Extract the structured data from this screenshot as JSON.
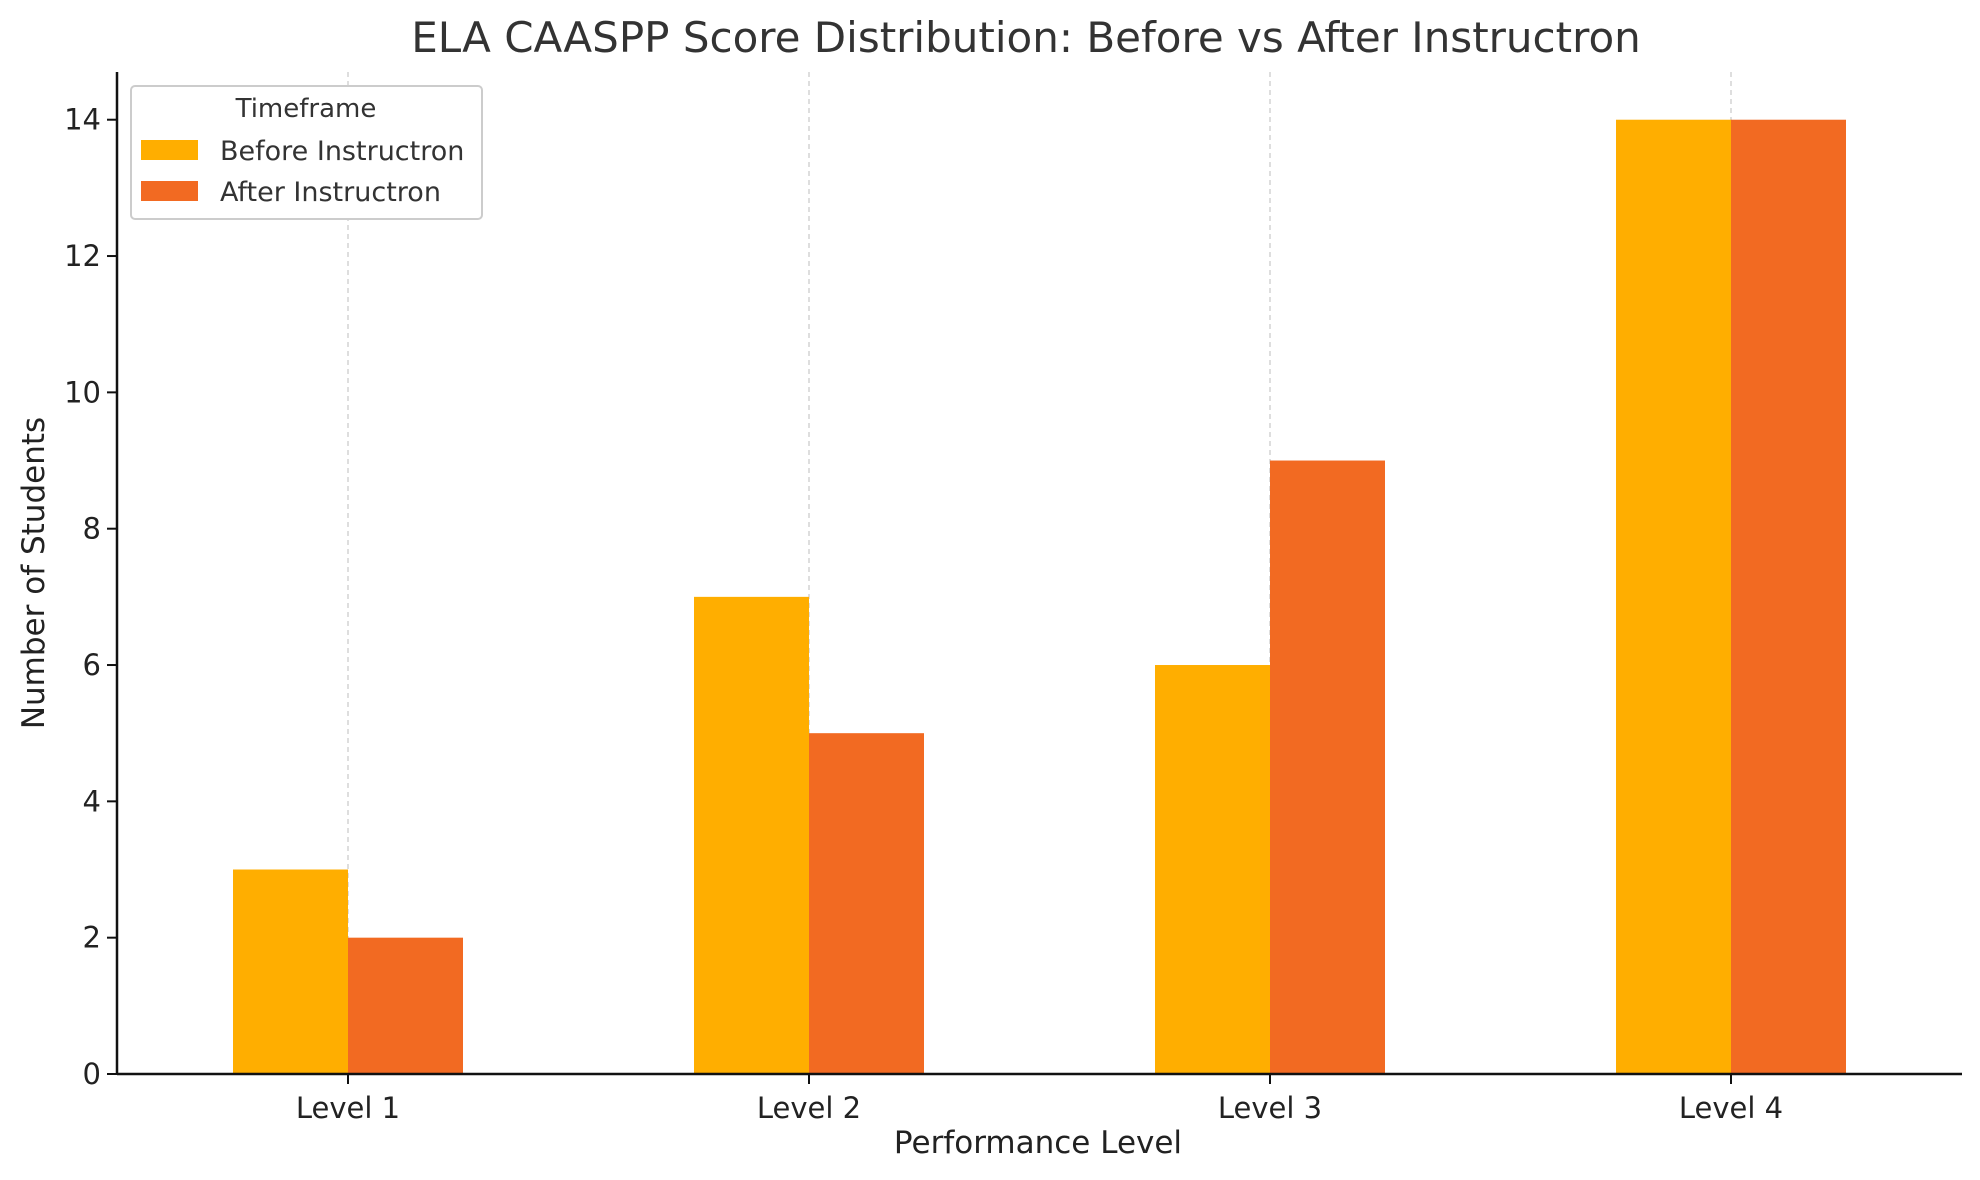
{
  "chart_data": {
    "type": "bar",
    "title": "ELA CAASPP Score Distribution: Before vs After Instructron",
    "xlabel": "Performance Level",
    "ylabel": "Number of Students",
    "categories": [
      "Level 1",
      "Level 2",
      "Level 3",
      "Level 4"
    ],
    "series": [
      {
        "name": "Before Instructron",
        "values": [
          3,
          7,
          6,
          14
        ],
        "color": "#FFAE00"
      },
      {
        "name": "After Instructron",
        "values": [
          2,
          5,
          9,
          14
        ],
        "color": "#F26A22"
      }
    ],
    "ylim": [
      0,
      14.7
    ],
    "yticks": [
      0,
      2,
      4,
      6,
      8,
      10,
      12,
      14
    ],
    "grid": "vertical dashed at categories",
    "legend": {
      "title": "Timeframe",
      "position": "top-left"
    }
  }
}
